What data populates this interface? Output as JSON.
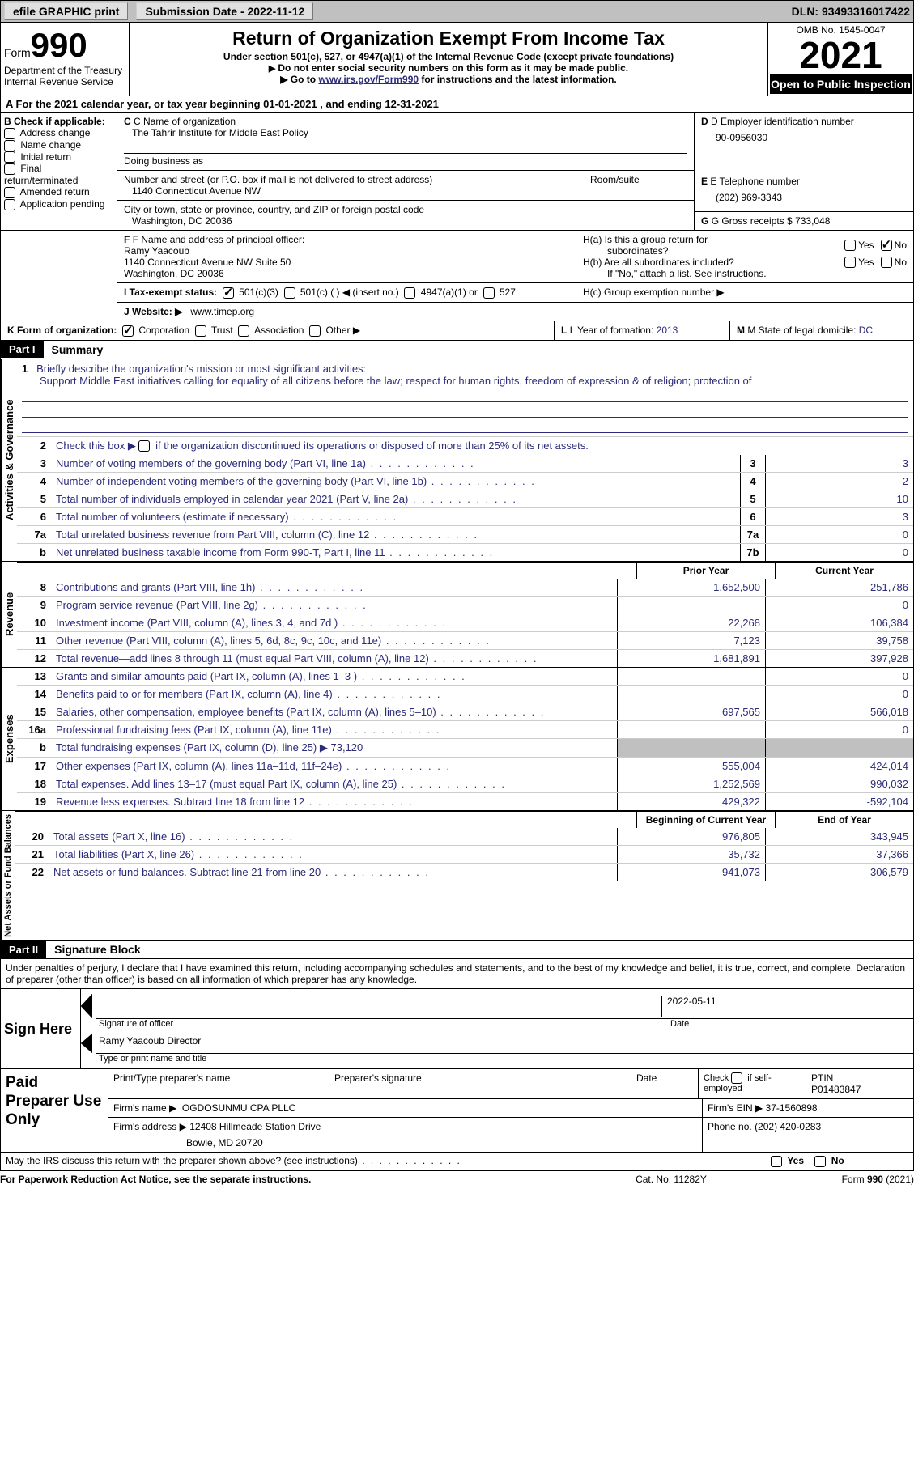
{
  "topbar": {
    "efile": "efile GRAPHIC print",
    "submission": "Submission Date - 2022-11-12",
    "dln": "DLN: 93493316017422"
  },
  "header": {
    "form_label": "Form",
    "form_number": "990",
    "title": "Return of Organization Exempt From Income Tax",
    "subtitle": "Under section 501(c), 527, or 4947(a)(1) of the Internal Revenue Code (except private foundations)",
    "warning": "Do not enter social security numbers on this form as it may be made public.",
    "goto_prefix": "Go to ",
    "goto_link": "www.irs.gov/Form990",
    "goto_suffix": " for instructions and the latest information.",
    "dept": "Department of the Treasury",
    "irs": "Internal Revenue Service",
    "omb": "OMB No. 1545-0047",
    "year": "2021",
    "open": "Open to Public Inspection"
  },
  "row_a": "A For the 2021 calendar year, or tax year beginning 01-01-2021   , and ending 12-31-2021",
  "section_b": {
    "b_label": "B Check if applicable:",
    "checks": [
      "Address change",
      "Name change",
      "Initial return",
      "Final return/terminated",
      "Amended return",
      "Application pending"
    ],
    "c_label": "C Name of organization",
    "org_name": "The Tahrir Institute for Middle East Policy",
    "dba_label": "Doing business as",
    "addr_label": "Number and street (or P.O. box if mail is not delivered to street address)",
    "room_label": "Room/suite",
    "addr": "1140 Connecticut Avenue NW",
    "city_label": "City or town, state or province, country, and ZIP or foreign postal code",
    "city": "Washington, DC  20036",
    "d_label": "D Employer identification number",
    "ein": "90-0956030",
    "e_label": "E Telephone number",
    "phone": "(202) 969-3343",
    "g_label": "G Gross receipts $ ",
    "g_val": "733,048"
  },
  "section_lower": {
    "f_label": "F Name and address of principal officer:",
    "f_name": "Ramy Yaacoub",
    "f_addr1": "1140 Connecticut Avenue NW Suite 50",
    "f_addr2": "Washington, DC  20036",
    "i_label": "I Tax-exempt status:",
    "i_opts": [
      "501(c)(3)",
      "501(c) (  ) ◀ (insert no.)",
      "4947(a)(1) or",
      "527"
    ],
    "j_label": "J Website: ▶",
    "j_val": "www.timep.org",
    "ha1": "H(a)  Is this a group return for",
    "ha2": "subordinates?",
    "hb": "H(b)  Are all subordinates included?",
    "hb_note": "If \"No,\" attach a list. See instructions.",
    "hc": "H(c)  Group exemption number ▶",
    "yes": "Yes",
    "no": "No"
  },
  "k_row": {
    "k_label": "K Form of organization:",
    "k_opts": [
      "Corporation",
      "Trust",
      "Association",
      "Other ▶"
    ],
    "l_label": "L Year of formation: ",
    "l_val": "2013",
    "m_label": "M State of legal domicile: ",
    "m_val": "DC"
  },
  "part1": {
    "header": "Part I",
    "title": "Summary",
    "mission_label": "Briefly describe the organization's mission or most significant activities:",
    "mission": "Support Middle East initiatives calling for equality of all citizens before the law; respect for human rights, freedom of expression & of religion; protection of",
    "line2": "Check this box ▶     if the organization discontinued its operations or disposed of more than 25% of its net assets.",
    "vact": "Activities & Governance",
    "vrev": "Revenue",
    "vexp": "Expenses",
    "vnet": "Net Assets or Fund Balances",
    "col_prior": "Prior Year",
    "col_current": "Current Year",
    "col_beg": "Beginning of Current Year",
    "col_end": "End of Year",
    "fundraising_note": "Total fundraising expenses (Part IX, column (D), line 25) ▶",
    "fundraising_val": "73,120",
    "lines_single": [
      {
        "n": "3",
        "desc": "Number of voting members of the governing body (Part VI, line 1a)",
        "box": "3",
        "val": "3"
      },
      {
        "n": "4",
        "desc": "Number of independent voting members of the governing body (Part VI, line 1b)",
        "box": "4",
        "val": "2"
      },
      {
        "n": "5",
        "desc": "Total number of individuals employed in calendar year 2021 (Part V, line 2a)",
        "box": "5",
        "val": "10"
      },
      {
        "n": "6",
        "desc": "Total number of volunteers (estimate if necessary)",
        "box": "6",
        "val": "3"
      },
      {
        "n": "7a",
        "desc": "Total unrelated business revenue from Part VIII, column (C), line 12",
        "box": "7a",
        "val": "0"
      },
      {
        "n": "b",
        "desc": "Net unrelated business taxable income from Form 990-T, Part I, line 11",
        "box": "7b",
        "val": "0"
      }
    ],
    "lines_rev": [
      {
        "n": "8",
        "desc": "Contributions and grants (Part VIII, line 1h)",
        "v1": "1,652,500",
        "v2": "251,786"
      },
      {
        "n": "9",
        "desc": "Program service revenue (Part VIII, line 2g)",
        "v1": "",
        "v2": "0"
      },
      {
        "n": "10",
        "desc": "Investment income (Part VIII, column (A), lines 3, 4, and 7d )",
        "v1": "22,268",
        "v2": "106,384"
      },
      {
        "n": "11",
        "desc": "Other revenue (Part VIII, column (A), lines 5, 6d, 8c, 9c, 10c, and 11e)",
        "v1": "7,123",
        "v2": "39,758"
      },
      {
        "n": "12",
        "desc": "Total revenue—add lines 8 through 11 (must equal Part VIII, column (A), line 12)",
        "v1": "1,681,891",
        "v2": "397,928"
      }
    ],
    "lines_exp": [
      {
        "n": "13",
        "desc": "Grants and similar amounts paid (Part IX, column (A), lines 1–3 )",
        "v1": "",
        "v2": "0"
      },
      {
        "n": "14",
        "desc": "Benefits paid to or for members (Part IX, column (A), line 4)",
        "v1": "",
        "v2": "0"
      },
      {
        "n": "15",
        "desc": "Salaries, other compensation, employee benefits (Part IX, column (A), lines 5–10)",
        "v1": "697,565",
        "v2": "566,018"
      },
      {
        "n": "16a",
        "desc": "Professional fundraising fees (Part IX, column (A), line 11e)",
        "v1": "",
        "v2": "0"
      },
      {
        "n": "17",
        "desc": "Other expenses (Part IX, column (A), lines 11a–11d, 11f–24e)",
        "v1": "555,004",
        "v2": "424,014"
      },
      {
        "n": "18",
        "desc": "Total expenses. Add lines 13–17 (must equal Part IX, column (A), line 25)",
        "v1": "1,252,569",
        "v2": "990,032"
      },
      {
        "n": "19",
        "desc": "Revenue less expenses. Subtract line 18 from line 12",
        "v1": "429,322",
        "v2": "-592,104"
      }
    ],
    "lines_net": [
      {
        "n": "20",
        "desc": "Total assets (Part X, line 16)",
        "v1": "976,805",
        "v2": "343,945"
      },
      {
        "n": "21",
        "desc": "Total liabilities (Part X, line 26)",
        "v1": "35,732",
        "v2": "37,366"
      },
      {
        "n": "22",
        "desc": "Net assets or fund balances. Subtract line 21 from line 20",
        "v1": "941,073",
        "v2": "306,579"
      }
    ]
  },
  "part2": {
    "header": "Part II",
    "title": "Signature Block",
    "penalty": "Under penalties of perjury, I declare that I have examined this return, including accompanying schedules and statements, and to the best of my knowledge and belief, it is true, correct, and complete. Declaration of preparer (other than officer) is based on all information of which preparer has any knowledge.",
    "sign_here": "Sign Here",
    "sig_officer": "Signature of officer",
    "date_val": "2022-05-11",
    "date_label": "Date",
    "name_title_val": "Ramy Yaacoub  Director",
    "name_title_label": "Type or print name and title",
    "paid_label": "Paid Preparer Use Only",
    "prep_name_label": "Print/Type preparer's name",
    "prep_sig_label": "Preparer's signature",
    "check_if": "Check       if self-employed",
    "ptin": "PTIN",
    "ptin_val": "P01483847",
    "firm_name_label": "Firm's name   ▶",
    "firm_name": "OGDOSUNMU CPA PLLC",
    "firm_ein_label": "Firm's EIN ▶",
    "firm_ein": "37-1560898",
    "firm_addr_label": "Firm's address ▶",
    "firm_addr1": "12408 Hillmeade Station Drive",
    "firm_addr2": "Bowie, MD  20720",
    "phone_label": "Phone no. ",
    "phone": "(202) 420-0283",
    "may_irs": "May the IRS discuss this return with the preparer shown above? (see instructions)"
  },
  "footer": {
    "paperwork": "For Paperwork Reduction Act Notice, see the separate instructions.",
    "cat": "Cat. No. 11282Y",
    "form": "Form 990 (2021)"
  }
}
